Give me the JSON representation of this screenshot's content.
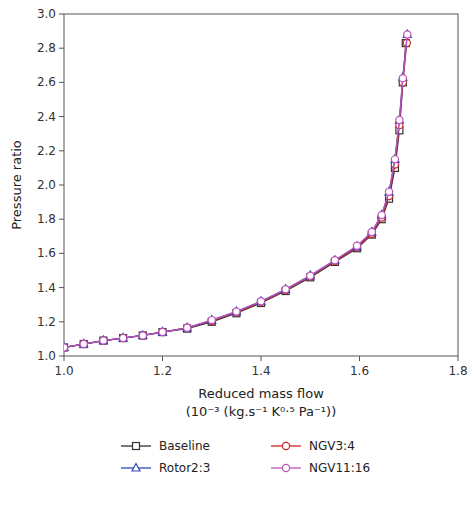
{
  "chart_data": {
    "type": "line",
    "xlabel": "Reduced mass flow\n(10⁻³ (kg.s⁻¹ K⁰·⁵ Pa⁻¹))",
    "ylabel": "Pressure ratio",
    "xlim": [
      1.0,
      1.8
    ],
    "ylim": [
      1.0,
      3.0
    ],
    "xticks": [
      {
        "value": 1.0,
        "label": "1.0"
      },
      1.2,
      1.4,
      1.6,
      1.8
    ],
    "yticks": [
      {
        "value": 1.0,
        "label": "1.0"
      },
      1.2,
      1.4,
      1.6,
      1.8,
      {
        "value": 2.0,
        "label": "2.0"
      },
      2.2,
      2.4,
      2.6,
      2.8,
      {
        "value": 3.0,
        "label": "3.0"
      }
    ],
    "grid": false,
    "legend": "bottom",
    "series": [
      {
        "name": "Baseline",
        "color": "#333333",
        "marker": "square",
        "x": [
          1.0,
          1.04,
          1.08,
          1.12,
          1.16,
          1.2,
          1.25,
          1.3,
          1.35,
          1.4,
          1.45,
          1.5,
          1.55,
          1.595,
          1.625,
          1.645,
          1.66,
          1.672,
          1.681,
          1.688,
          1.694
        ],
        "values": [
          1.05,
          1.07,
          1.09,
          1.105,
          1.12,
          1.14,
          1.16,
          1.2,
          1.25,
          1.31,
          1.38,
          1.46,
          1.55,
          1.63,
          1.71,
          1.8,
          1.92,
          2.1,
          2.32,
          2.6,
          2.83
        ]
      },
      {
        "name": "NGV3:4",
        "color": "#cc2222",
        "marker": "circle",
        "x": [
          1.0,
          1.04,
          1.08,
          1.12,
          1.16,
          1.2,
          1.25,
          1.3,
          1.35,
          1.4,
          1.45,
          1.5,
          1.55,
          1.595,
          1.625,
          1.645,
          1.66,
          1.672,
          1.681,
          1.688,
          1.696
        ],
        "values": [
          1.05,
          1.07,
          1.09,
          1.105,
          1.12,
          1.14,
          1.165,
          1.205,
          1.255,
          1.315,
          1.385,
          1.465,
          1.555,
          1.635,
          1.715,
          1.81,
          1.935,
          2.12,
          2.35,
          2.6,
          2.83
        ]
      },
      {
        "name": "Rotor2:3",
        "color": "#3344bb",
        "marker": "triangle",
        "x": [
          1.0,
          1.04,
          1.08,
          1.12,
          1.16,
          1.2,
          1.25,
          1.3,
          1.35,
          1.4,
          1.45,
          1.5,
          1.55,
          1.595,
          1.625,
          1.645,
          1.66,
          1.672,
          1.681,
          1.688,
          1.697
        ],
        "values": [
          1.05,
          1.07,
          1.09,
          1.105,
          1.12,
          1.14,
          1.165,
          1.21,
          1.26,
          1.32,
          1.39,
          1.47,
          1.56,
          1.64,
          1.725,
          1.825,
          1.96,
          2.15,
          2.38,
          2.63,
          2.88
        ]
      },
      {
        "name": "NGV11:16",
        "color": "#bb55bb",
        "marker": "circle",
        "x": [
          1.0,
          1.04,
          1.08,
          1.12,
          1.16,
          1.2,
          1.25,
          1.3,
          1.35,
          1.4,
          1.45,
          1.5,
          1.55,
          1.595,
          1.625,
          1.645,
          1.66,
          1.672,
          1.681,
          1.688,
          1.697
        ],
        "values": [
          1.05,
          1.07,
          1.09,
          1.105,
          1.12,
          1.14,
          1.165,
          1.21,
          1.26,
          1.32,
          1.39,
          1.47,
          1.56,
          1.645,
          1.725,
          1.825,
          1.96,
          2.15,
          2.38,
          2.625,
          2.88
        ]
      }
    ]
  }
}
